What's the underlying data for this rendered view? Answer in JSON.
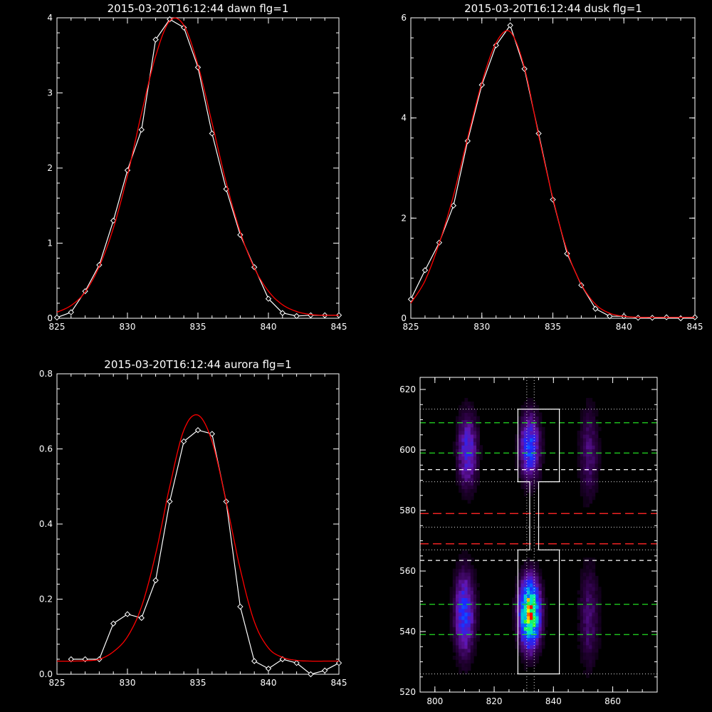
{
  "chart_data": [
    {
      "type": "line",
      "title": "2015-03-20T16:12:44 dawn flg=1",
      "xlim": [
        825,
        845
      ],
      "ylim": [
        0,
        4
      ],
      "xticks": [
        825,
        830,
        835,
        840,
        845
      ],
      "yticks": [
        0,
        1,
        2,
        3,
        4
      ],
      "colors": {
        "data": "#ffffff",
        "fit": "#ff0000"
      },
      "series": [
        {
          "role": "data",
          "marker": "diamond",
          "x": [
            825,
            826,
            827,
            828,
            829,
            830,
            831,
            832,
            833,
            834,
            835,
            836,
            837,
            838,
            839,
            840,
            841,
            842,
            843,
            844,
            845
          ],
          "y": [
            0.01,
            0.08,
            0.36,
            0.71,
            1.3,
            1.97,
            2.51,
            3.71,
            3.98,
            3.87,
            3.34,
            2.46,
            1.72,
            1.11,
            0.68,
            0.26,
            0.07,
            0.03,
            0.04,
            0.04,
            0.04
          ]
        },
        {
          "role": "fit",
          "x": [
            825,
            826,
            827,
            828,
            829,
            830,
            831,
            832,
            833,
            834,
            835,
            836,
            837,
            838,
            839,
            840,
            841,
            842,
            843,
            844,
            845
          ],
          "y": [
            0.08,
            0.17,
            0.35,
            0.69,
            1.2,
            1.9,
            2.73,
            3.49,
            3.96,
            3.9,
            3.37,
            2.6,
            1.81,
            1.15,
            0.67,
            0.36,
            0.18,
            0.09,
            0.05,
            0.04,
            0.04
          ]
        }
      ]
    },
    {
      "type": "line",
      "title": "2015-03-20T16:12:44 dusk flg=1",
      "xlim": [
        825,
        845
      ],
      "ylim": [
        0,
        6
      ],
      "xticks": [
        825,
        830,
        835,
        840,
        845
      ],
      "yticks": [
        0,
        2,
        4,
        6
      ],
      "colors": {
        "data": "#ffffff",
        "fit": "#ff0000"
      },
      "series": [
        {
          "role": "data",
          "marker": "diamond",
          "x": [
            825,
            826,
            827,
            828,
            829,
            830,
            831,
            832,
            833,
            834,
            835,
            836,
            837,
            838,
            839,
            840,
            841,
            842,
            843,
            844,
            845
          ],
          "y": [
            0.38,
            0.96,
            1.51,
            2.25,
            3.54,
            4.66,
            5.45,
            5.85,
            4.98,
            3.69,
            2.37,
            1.29,
            0.66,
            0.19,
            0.04,
            0.04,
            0.01,
            0.01,
            0.02,
            0.0,
            0.02
          ]
        },
        {
          "role": "fit",
          "x": [
            825,
            826,
            827,
            828,
            829,
            830,
            831,
            832,
            833,
            834,
            835,
            836,
            837,
            838,
            839,
            840,
            841,
            842,
            843,
            844,
            845
          ],
          "y": [
            0.3,
            0.75,
            1.5,
            2.45,
            3.6,
            4.7,
            5.5,
            5.72,
            5.0,
            3.65,
            2.4,
            1.35,
            0.68,
            0.28,
            0.1,
            0.04,
            0.02,
            0.02,
            0.02,
            0.02,
            0.02
          ]
        }
      ]
    },
    {
      "type": "line",
      "title": "2015-03-20T16:12:44 aurora flg=1",
      "xlim": [
        825,
        845
      ],
      "ylim": [
        0,
        0.8
      ],
      "xticks": [
        825,
        830,
        835,
        840,
        845
      ],
      "yticks": [
        0.0,
        0.2,
        0.4,
        0.6,
        0.8
      ],
      "yticklabels": [
        "0.0",
        "0.2",
        "0.4",
        "0.6",
        "0.8"
      ],
      "colors": {
        "data": "#ffffff",
        "fit": "#ff0000"
      },
      "series": [
        {
          "role": "data",
          "marker": "diamond",
          "x": [
            826,
            827,
            828,
            829,
            830,
            831,
            832,
            833,
            834,
            835,
            836,
            837,
            838,
            839,
            840,
            841,
            842,
            843,
            844,
            845
          ],
          "y": [
            0.04,
            0.04,
            0.04,
            0.135,
            0.16,
            0.15,
            0.25,
            0.46,
            0.62,
            0.65,
            0.64,
            0.46,
            0.18,
            0.035,
            0.015,
            0.04,
            0.03,
            0.0,
            0.01,
            0.03
          ]
        },
        {
          "role": "fit",
          "x": [
            825,
            826,
            827,
            828,
            829,
            830,
            831,
            832,
            833,
            834,
            835,
            836,
            837,
            838,
            839,
            840,
            841,
            842,
            843,
            844,
            845
          ],
          "y": [
            0.035,
            0.035,
            0.036,
            0.04,
            0.06,
            0.1,
            0.18,
            0.32,
            0.5,
            0.65,
            0.69,
            0.62,
            0.46,
            0.28,
            0.14,
            0.07,
            0.045,
            0.037,
            0.035,
            0.035,
            0.035
          ]
        }
      ]
    },
    {
      "type": "heatmap",
      "title": "",
      "xlim": [
        795,
        875
      ],
      "ylim": [
        520,
        624
      ],
      "xticks": [
        800,
        820,
        840,
        860
      ],
      "yticks": [
        520,
        540,
        560,
        580,
        600,
        620
      ],
      "colors": {
        "green_lines": "#22dd22",
        "red_lines": "#ee2222",
        "white_lines": "#ffffff",
        "dotted_lines": "#dddddd"
      },
      "blobs": [
        {
          "x": 811,
          "y": 600,
          "sx": 2.2,
          "sy": 8,
          "amp": 0.28
        },
        {
          "x": 832,
          "y": 601,
          "sx": 2.2,
          "sy": 7,
          "amp": 0.38
        },
        {
          "x": 852,
          "y": 599,
          "sx": 2.2,
          "sy": 10,
          "amp": 0.14
        },
        {
          "x": 810,
          "y": 546,
          "sx": 2.2,
          "sy": 9,
          "amp": 0.36
        },
        {
          "x": 832,
          "y": 546,
          "sx": 2.2,
          "sy": 7,
          "amp": 0.95
        },
        {
          "x": 852,
          "y": 545,
          "sx": 2.2,
          "sy": 11,
          "amp": 0.14
        }
      ],
      "green_dashed_y": [
        609,
        599,
        549,
        539
      ],
      "red_dashed_y": [
        579,
        569
      ],
      "white_dashed_y": [
        593.5,
        563.5
      ],
      "dotted_h_y": [
        613.5,
        589.5,
        574.5,
        567,
        526
      ],
      "dotted_v_x": [
        831,
        833.5
      ],
      "box_outline": [
        [
          828,
          613.5
        ],
        [
          842,
          613.5
        ],
        [
          842,
          589.5
        ],
        [
          835,
          589.5
        ],
        [
          835,
          567
        ],
        [
          842,
          567
        ],
        [
          842,
          526
        ],
        [
          828,
          526
        ],
        [
          828,
          567
        ],
        [
          832,
          567
        ],
        [
          832,
          589.5
        ],
        [
          828,
          589.5
        ]
      ]
    }
  ]
}
